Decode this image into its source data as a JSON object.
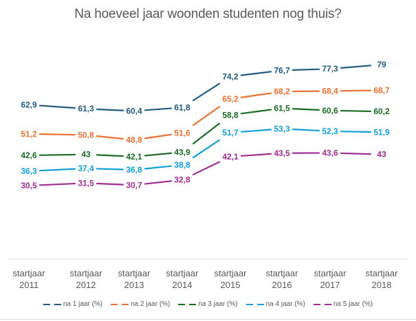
{
  "chart_data": {
    "type": "line",
    "title": "Na hoeveel jaar woonden studenten nog thuis?",
    "xlabel": "",
    "ylabel": "",
    "categories": [
      [
        "startjaar",
        "2011"
      ],
      [
        "startjaar",
        "2012"
      ],
      [
        "startjaar",
        "2013"
      ],
      [
        "startjaar",
        "2014"
      ],
      [
        "startjaar",
        "2015"
      ],
      [
        "startjaar",
        "2016"
      ],
      [
        "startjaar",
        "2017"
      ],
      [
        "startjaar",
        "2018"
      ]
    ],
    "ylim": [
      30.5,
      79
    ],
    "grid": false,
    "legend_position": "bottom",
    "series": [
      {
        "name": "na 1 jaar (%)",
        "color": "#1f5b80",
        "values": [
          62.9,
          61.3,
          60.4,
          61.8,
          74.2,
          76.7,
          77.3,
          79
        ],
        "labels": [
          "62,9",
          "61,3",
          "60,4",
          "61,8",
          "74,2",
          "76,7",
          "77,3",
          "79"
        ]
      },
      {
        "name": "na 2 jaar (%)",
        "color": "#e97132",
        "values": [
          51.2,
          50.8,
          48.8,
          51.6,
          65.2,
          68.2,
          68.4,
          68.7
        ],
        "labels": [
          "51,2",
          "50,8",
          "48,8",
          "51,6",
          "65,2",
          "68,2",
          "68,4",
          "68,7"
        ]
      },
      {
        "name": "na 3 jaar (%)",
        "color": "#196b24",
        "values": [
          42.6,
          43,
          42.1,
          43.9,
          58.8,
          61.5,
          60.6,
          60.2
        ],
        "labels": [
          "42,6",
          "43",
          "42,1",
          "43,9",
          "58,8",
          "61,5",
          "60,6",
          "60,2"
        ]
      },
      {
        "name": "na 4 jaar (%)",
        "color": "#0f9ed5",
        "values": [
          36.3,
          37.4,
          36.8,
          38.8,
          51.7,
          53.3,
          52.3,
          51.9
        ],
        "labels": [
          "36,3",
          "37,4",
          "36,8",
          "38,8",
          "51,7",
          "53,3",
          "52,3",
          "51,9"
        ]
      },
      {
        "name": "na 5 jaar (%)",
        "color": "#a02b93",
        "values": [
          30.5,
          31.5,
          30.7,
          32.8,
          42.1,
          43.5,
          43.6,
          43
        ],
        "labels": [
          "30,5",
          "31,5",
          "30,7",
          "32,8",
          "42,1",
          "43,5",
          "43,6",
          "43"
        ]
      }
    ]
  }
}
